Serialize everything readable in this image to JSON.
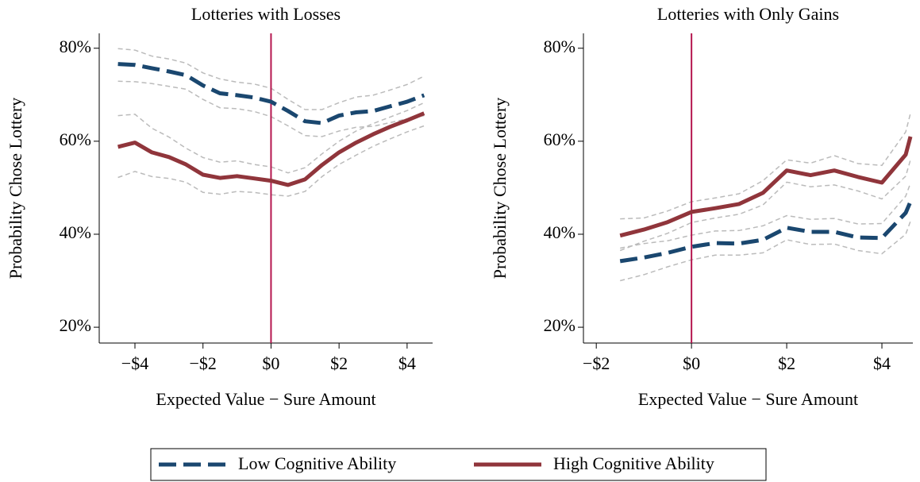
{
  "chart_data": [
    {
      "type": "line",
      "title": "Lotteries with Losses",
      "xlabel": "Expected Value − Sure Amount",
      "ylabel": "Probability Chose Lottery",
      "x": [
        -4.5,
        -4,
        -3.5,
        -3,
        -2.5,
        -2,
        -1.5,
        -1,
        -0.5,
        0,
        0.5,
        1,
        1.5,
        2,
        2.5,
        3,
        3.5,
        4,
        4.5
      ],
      "xlim": [
        -5.05,
        4.75
      ],
      "xticks": [
        {
          "value": -4,
          "label": "−$4"
        },
        {
          "value": -2,
          "label": "−$2"
        },
        {
          "value": 0,
          "label": "$0"
        },
        {
          "value": 2,
          "label": "$2"
        },
        {
          "value": 4,
          "label": "$4"
        }
      ],
      "ylim": [
        16.6,
        83.2
      ],
      "yticks": [
        {
          "value": 20,
          "label": "20%"
        },
        {
          "value": 40,
          "label": "40%"
        },
        {
          "value": 60,
          "label": "60%"
        },
        {
          "value": 80,
          "label": "80%"
        }
      ],
      "vline": 0,
      "vline_color": "#b5174f",
      "band_color": "#bbbbbb",
      "legend": "bottom",
      "series": [
        {
          "name": "Low Cognitive Ability",
          "color": "#1a476f",
          "dash": true,
          "values": [
            76.6,
            76.4,
            75.7,
            75,
            74.2,
            72,
            70.3,
            69.9,
            69.4,
            68.5,
            66.5,
            64.3,
            63.9,
            65.5,
            66.2,
            66.5,
            67.5,
            68.5,
            69.9
          ],
          "upper": [
            79.9,
            79.6,
            78.3,
            77.7,
            76.8,
            74.7,
            73.4,
            72.7,
            72.3,
            71.4,
            69,
            66.8,
            66.8,
            68.3,
            69.5,
            69.9,
            71,
            72.2,
            74
          ],
          "lower": [
            72.9,
            72.8,
            72.4,
            71.8,
            71.2,
            69,
            67.2,
            67,
            66.4,
            65.3,
            63.3,
            61.2,
            61,
            62.2,
            63,
            63.2,
            64,
            64.8,
            65.5
          ]
        },
        {
          "name": "High Cognitive Ability",
          "color": "#90353b",
          "dash": false,
          "values": [
            58.8,
            59.7,
            57.6,
            56.6,
            55,
            52.8,
            52.1,
            52.5,
            52,
            51.5,
            50.6,
            51.8,
            54.9,
            57.6,
            59.7,
            61.5,
            63.1,
            64.5,
            66
          ],
          "upper": [
            65.5,
            65.8,
            62.8,
            60.9,
            58.5,
            56.5,
            55.5,
            55.8,
            55,
            54.5,
            53.2,
            54.3,
            57.3,
            60,
            62.2,
            63.8,
            65.2,
            66.6,
            68.3
          ],
          "lower": [
            52.2,
            53.5,
            52.4,
            52,
            51.2,
            49,
            48.6,
            49.2,
            49,
            48.5,
            48.2,
            49.2,
            52.4,
            55,
            57,
            58.9,
            60.5,
            62,
            63.3
          ]
        }
      ]
    },
    {
      "type": "line",
      "title": "Lotteries with Only Gains",
      "xlabel": "Expected Value − Sure Amount",
      "ylabel": "Probability Chose Lottery",
      "x": [
        -1.5,
        -1,
        -0.5,
        0,
        0.5,
        1,
        1.5,
        2,
        2.5,
        3,
        3.5,
        4,
        4.5,
        4.6
      ],
      "xlim": [
        -2.27,
        4.65
      ],
      "xticks": [
        {
          "value": -2,
          "label": "−$2"
        },
        {
          "value": 0,
          "label": "$0"
        },
        {
          "value": 2,
          "label": "$2"
        },
        {
          "value": 4,
          "label": "$4"
        }
      ],
      "ylim": [
        16.6,
        83.2
      ],
      "yticks": [
        {
          "value": 20,
          "label": "20%"
        },
        {
          "value": 40,
          "label": "40%"
        },
        {
          "value": 60,
          "label": "60%"
        },
        {
          "value": 80,
          "label": "80%"
        }
      ],
      "vline": 0,
      "vline_color": "#b5174f",
      "band_color": "#bbbbbb",
      "series": [
        {
          "color": "#1a476f",
          "dash": true,
          "values": [
            34.2,
            35,
            36,
            37.3,
            38.1,
            38,
            38.8,
            41.4,
            40.5,
            40.5,
            39.3,
            39.2,
            44.6,
            47
          ],
          "upper": [
            37,
            38,
            38.6,
            39.8,
            40.7,
            40.8,
            41.8,
            44,
            43.2,
            43.4,
            42.2,
            42.3,
            48.2,
            51
          ],
          "lower": [
            30,
            31.3,
            33,
            34.5,
            35.5,
            35.5,
            36,
            38.8,
            37.8,
            37.9,
            36.5,
            35.8,
            40,
            42.8
          ]
        },
        {
          "color": "#90353b",
          "dash": false,
          "values": [
            39.7,
            41,
            42.6,
            44.8,
            45.6,
            46.5,
            48.9,
            53.7,
            52.7,
            53.7,
            52.3,
            51.1,
            57.1,
            61
          ],
          "upper": [
            43.3,
            43.5,
            45,
            47,
            47.8,
            48.7,
            51.5,
            56,
            55.3,
            56.9,
            55.2,
            54.8,
            62,
            66
          ],
          "lower": [
            36.5,
            38.5,
            40.2,
            42.5,
            43.5,
            44.3,
            46.3,
            51.2,
            50.2,
            50.6,
            49.3,
            47.6,
            52.5,
            56
          ]
        }
      ]
    }
  ]
}
